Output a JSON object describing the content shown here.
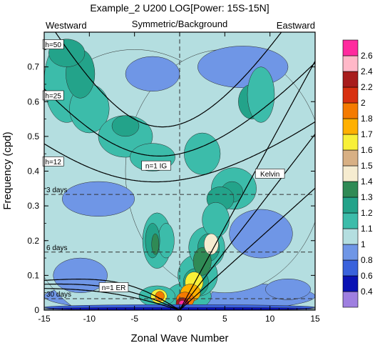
{
  "chart_data": {
    "type": "heatmap",
    "title": "Example_2 U200 LOG[Power: 15S-15N]",
    "subtitle": "Symmetric/Background",
    "corner_left": "Westward",
    "corner_right": "Eastward",
    "xlabel": "Zonal Wave Number",
    "ylabel": "Frequency (cpd)",
    "xlim": [
      -15,
      15
    ],
    "ylim": [
      0,
      0.8
    ],
    "x_ticks": [
      -15,
      -10,
      -5,
      0,
      5,
      10,
      15
    ],
    "y_ticks": [
      0,
      0.1,
      0.2,
      0.3,
      0.4,
      0.5,
      0.6,
      0.7
    ],
    "grid": false,
    "colorbar": {
      "levels": [
        0.4,
        0.6,
        0.8,
        1,
        1.1,
        1.2,
        1.3,
        1.4,
        1.5,
        1.6,
        1.7,
        1.8,
        2,
        2.2,
        2.4,
        2.6
      ],
      "labels": [
        "0.4",
        "0.6",
        "0.8",
        "1",
        "1.1",
        "1.2",
        "1.3",
        "1.4",
        "1.5",
        "1.6",
        "1.7",
        "1.8",
        "2",
        "2.2",
        "2.4",
        "2.6"
      ],
      "colors": [
        "#9f7fe0",
        "#0a12b4",
        "#3a62dc",
        "#6f96e6",
        "#b4dee0",
        "#3cbcaa",
        "#23a38a",
        "#2f8a55",
        "#f6ecd0",
        "#d8b084",
        "#f8f038",
        "#ffb000",
        "#f47a00",
        "#d83010",
        "#a81c1c",
        "#ffb8c8",
        "#ff2a9e"
      ]
    },
    "dispersion_labels": [
      {
        "text": "h=50",
        "x": -14.0,
        "y": 0.764
      },
      {
        "text": "h=25",
        "x": -14.0,
        "y": 0.617
      },
      {
        "text": "h=12",
        "x": -14.0,
        "y": 0.427
      },
      {
        "text": "n=1 IG",
        "x": -2.6,
        "y": 0.415
      },
      {
        "text": "Kelvin",
        "x": 10.0,
        "y": 0.392
      },
      {
        "text": "n=1 ER",
        "x": -7.3,
        "y": 0.065
      }
    ],
    "period_lines": [
      {
        "label": "3 days",
        "freq": 0.333
      },
      {
        "label": "6 days",
        "freq": 0.167
      },
      {
        "label": "30 days",
        "freq": 0.033
      }
    ],
    "series": [
      {
        "type": "kelvin",
        "h": 12
      },
      {
        "type": "kelvin",
        "h": 25
      },
      {
        "type": "kelvin",
        "h": 50
      },
      {
        "type": "ig1",
        "h": 12
      },
      {
        "type": "ig1",
        "h": 25
      },
      {
        "type": "ig1",
        "h": 50
      },
      {
        "type": "er1",
        "h": 12
      },
      {
        "type": "er1",
        "h": 25
      },
      {
        "type": "er1",
        "h": 50
      }
    ],
    "regions": [
      {
        "level": 3,
        "cx": 0,
        "cy": 0.04,
        "rx": 15,
        "ry": 0.045
      },
      {
        "level": 4,
        "cx": -5,
        "cy": 0.35,
        "rx": 13,
        "ry": 0.4
      },
      {
        "level": 4,
        "cx": 5,
        "cy": 0.4,
        "rx": 11,
        "ry": 0.35
      },
      {
        "level": 3,
        "cx": -9,
        "cy": 0.32,
        "rx": 4,
        "ry": 0.05
      },
      {
        "level": 3,
        "cx": 7,
        "cy": 0.7,
        "rx": 5,
        "ry": 0.06
      },
      {
        "level": 3,
        "cx": -3,
        "cy": 0.68,
        "rx": 3,
        "ry": 0.05
      },
      {
        "level": 3,
        "cx": 9,
        "cy": 0.22,
        "rx": 3.5,
        "ry": 0.07
      },
      {
        "level": 3,
        "cx": -11,
        "cy": 0.1,
        "rx": 3,
        "ry": 0.05
      },
      {
        "level": 3,
        "cx": 12,
        "cy": 0.06,
        "rx": 2.5,
        "ry": 0.03
      },
      {
        "level": 5,
        "cx": -12.5,
        "cy": 0.66,
        "rx": 2.5,
        "ry": 0.12
      },
      {
        "level": 5,
        "cx": -10,
        "cy": 0.58,
        "rx": 2.2,
        "ry": 0.07
      },
      {
        "level": 6,
        "cx": -11,
        "cy": 0.68,
        "rx": 1.6,
        "ry": 0.07
      },
      {
        "level": 5,
        "cx": -6,
        "cy": 0.5,
        "rx": 3,
        "ry": 0.06
      },
      {
        "level": 6,
        "cx": -6,
        "cy": 0.53,
        "rx": 1.5,
        "ry": 0.03
      },
      {
        "level": 7,
        "cx": -12.3,
        "cy": 0.74,
        "rx": 1.2,
        "ry": 0.035
      },
      {
        "level": 6,
        "cx": -12.5,
        "cy": 0.74,
        "rx": 2.0,
        "ry": 0.04
      },
      {
        "level": 5,
        "cx": -3,
        "cy": 0.44,
        "rx": 2.5,
        "ry": 0.04
      },
      {
        "level": 5,
        "cx": -2.5,
        "cy": 0.2,
        "rx": 1.6,
        "ry": 0.08
      },
      {
        "level": 5,
        "cx": -1.5,
        "cy": 0.2,
        "rx": 0.9,
        "ry": 0.05
      },
      {
        "level": 6,
        "cx": -3,
        "cy": 0.2,
        "rx": 0.8,
        "ry": 0.05
      },
      {
        "level": 7,
        "cx": -2.7,
        "cy": 0.19,
        "rx": 0.4,
        "ry": 0.03
      },
      {
        "level": 5,
        "cx": 2.5,
        "cy": 0.45,
        "rx": 2,
        "ry": 0.06
      },
      {
        "level": 5,
        "cx": 6,
        "cy": 0.35,
        "rx": 2.5,
        "ry": 0.06
      },
      {
        "level": 6,
        "cx": 5.8,
        "cy": 0.34,
        "rx": 1.2,
        "ry": 0.03
      },
      {
        "level": 6,
        "cx": 4.5,
        "cy": 0.32,
        "rx": 1.5,
        "ry": 0.035
      },
      {
        "level": 5,
        "cx": 1,
        "cy": 0.04,
        "rx": 2.5,
        "ry": 0.04
      },
      {
        "level": 5,
        "cx": 2,
        "cy": 0.1,
        "rx": 2.2,
        "ry": 0.06
      },
      {
        "level": 5,
        "cx": 3,
        "cy": 0.18,
        "rx": 2.0,
        "ry": 0.06
      },
      {
        "level": 5,
        "cx": 4,
        "cy": 0.26,
        "rx": 1.5,
        "ry": 0.05
      },
      {
        "level": 6,
        "cx": 1.8,
        "cy": 0.08,
        "rx": 1.4,
        "ry": 0.04
      },
      {
        "level": 6,
        "cx": 3.2,
        "cy": 0.18,
        "rx": 1.2,
        "ry": 0.04
      },
      {
        "level": 7,
        "cx": 2.5,
        "cy": 0.14,
        "rx": 1.0,
        "ry": 0.04
      },
      {
        "level": 8,
        "cx": 3.5,
        "cy": 0.19,
        "rx": 0.8,
        "ry": 0.03
      },
      {
        "level": 10,
        "cx": 1.6,
        "cy": 0.08,
        "rx": 1.0,
        "ry": 0.03
      },
      {
        "level": 11,
        "cx": 1.2,
        "cy": 0.05,
        "rx": 1.1,
        "ry": 0.025
      },
      {
        "level": 12,
        "cx": 0.6,
        "cy": 0.03,
        "rx": 1.0,
        "ry": 0.022
      },
      {
        "level": 14,
        "cx": 0.3,
        "cy": 0.02,
        "rx": 0.7,
        "ry": 0.016
      },
      {
        "level": 16,
        "cx": 0.3,
        "cy": 0.018,
        "rx": 0.4,
        "ry": 0.01
      },
      {
        "level": 5,
        "cx": -2.5,
        "cy": 0.04,
        "rx": 2,
        "ry": 0.03
      },
      {
        "level": 10,
        "cx": -2.3,
        "cy": 0.04,
        "rx": 0.9,
        "ry": 0.02
      },
      {
        "level": 12,
        "cx": -2.2,
        "cy": 0.04,
        "rx": 0.5,
        "ry": 0.014
      },
      {
        "level": 2,
        "cx": 0,
        "cy": 0.008,
        "rx": 15,
        "ry": 0.008
      },
      {
        "level": 1,
        "cx": 0,
        "cy": 0.004,
        "rx": 15,
        "ry": 0.004
      },
      {
        "level": 6,
        "cx": 8,
        "cy": 0.6,
        "rx": 1.5,
        "ry": 0.05
      },
      {
        "level": 5,
        "cx": 9,
        "cy": 0.62,
        "rx": 1.5,
        "ry": 0.08
      }
    ]
  }
}
